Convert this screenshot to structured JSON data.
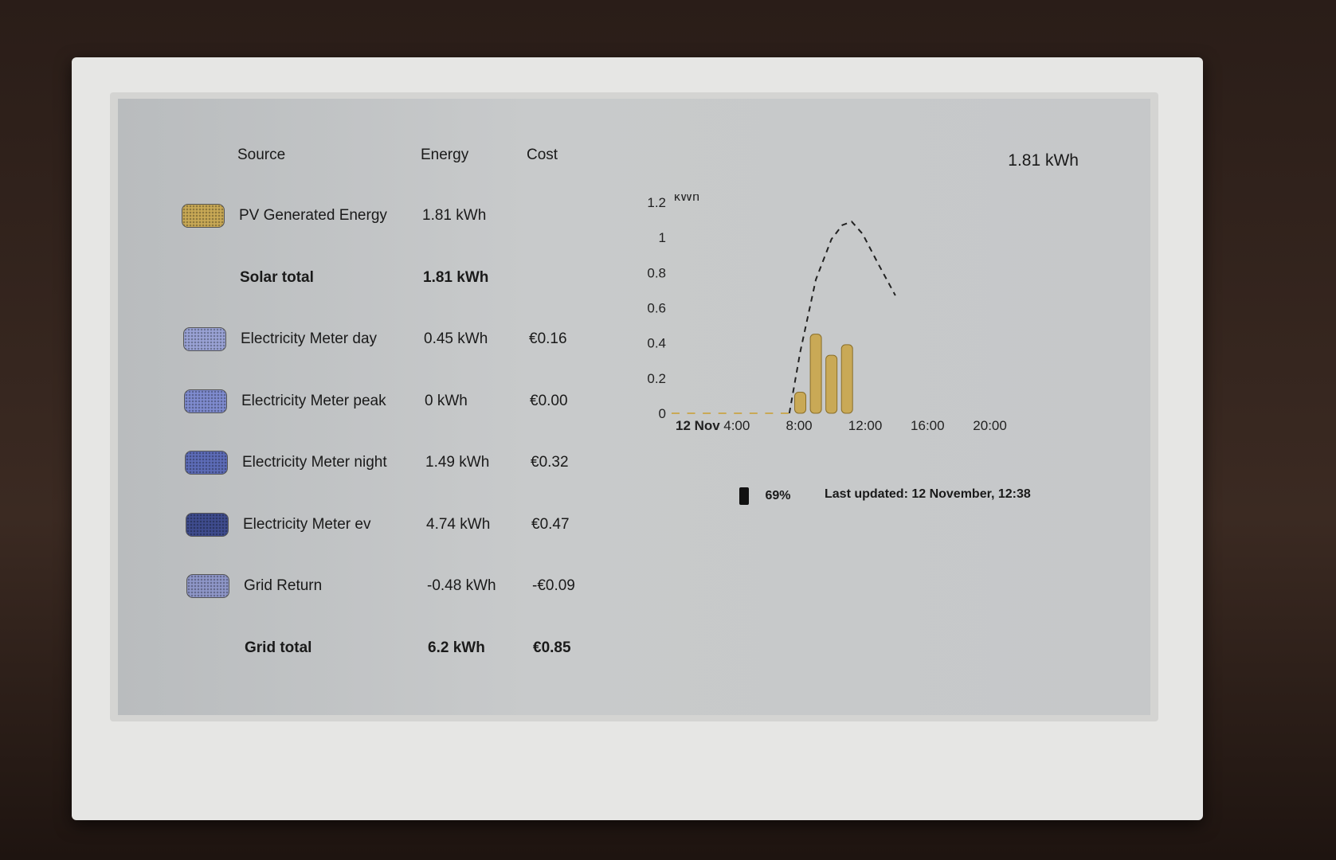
{
  "table": {
    "headers": [
      "Source",
      "Energy",
      "Cost"
    ],
    "rows": [
      {
        "source": "PV Generated Energy",
        "energy": "1.81 kWh",
        "cost": "",
        "swatch": "#c9a956",
        "total": false
      },
      {
        "source": "Solar total",
        "energy": "1.81 kWh",
        "cost": "",
        "swatch": "",
        "total": true
      },
      {
        "source": "Electricity Meter day",
        "energy": "0.45 kWh",
        "cost": "€0.16",
        "swatch": "#9aa3d6",
        "total": false
      },
      {
        "source": "Electricity Meter peak",
        "energy": "0 kWh",
        "cost": "€0.00",
        "swatch": "#7f8cd0",
        "total": false
      },
      {
        "source": "Electricity Meter night",
        "energy": "1.49 kWh",
        "cost": "€0.32",
        "swatch": "#5d6cb8",
        "total": false
      },
      {
        "source": "Electricity Meter ev",
        "energy": "4.74 kWh",
        "cost": "€0.47",
        "swatch": "#3f4c8e",
        "total": false
      },
      {
        "source": "Grid Return",
        "energy": "-0.48 kWh",
        "cost": "-€0.09",
        "swatch": "#8f97c9",
        "total": false
      },
      {
        "source": "Grid total",
        "energy": "6.2 kWh",
        "cost": "€0.85",
        "swatch": "",
        "total": true
      }
    ]
  },
  "summary": {
    "value": "1.81 kWh"
  },
  "status": {
    "battery": "69%",
    "battery_icon": "battery-icon",
    "last_updated": "Last updated: 12 November, 12:38"
  },
  "chart_data": {
    "type": "bar",
    "ylabel": "kWh",
    "ylim": [
      0,
      1.2
    ],
    "yticks": [
      "0",
      "0.2",
      "0.4",
      "0.6",
      "0.8",
      "1",
      "1.2"
    ],
    "xlim": [
      0,
      23
    ],
    "xticks": [
      {
        "h": 0,
        "label": "12 Nov"
      },
      {
        "h": 4,
        "label": "4:00"
      },
      {
        "h": 8,
        "label": "8:00"
      },
      {
        "h": 12,
        "label": "12:00"
      },
      {
        "h": 16,
        "label": "16:00"
      },
      {
        "h": 20,
        "label": "20:00"
      }
    ],
    "bars": {
      "color": "#c9a956",
      "x": [
        0,
        1,
        2,
        3,
        4,
        5,
        6,
        7,
        8,
        9,
        10,
        11
      ],
      "values": [
        0,
        0,
        0,
        0,
        0,
        0,
        0,
        0,
        0.12,
        0.45,
        0.33,
        0.39
      ]
    },
    "forecast": {
      "style": "dashed",
      "x": [
        7.3,
        8,
        9,
        10,
        10.7,
        11.3,
        12,
        13,
        14.1
      ],
      "values": [
        0,
        0.35,
        0.76,
        0.99,
        1.07,
        1.09,
        1.02,
        0.85,
        0.67
      ]
    }
  }
}
